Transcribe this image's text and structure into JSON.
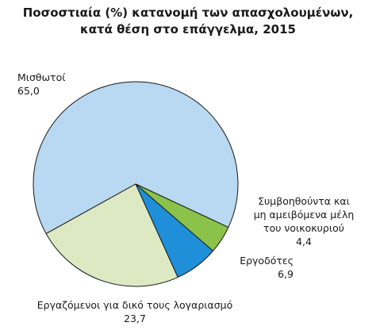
{
  "chart_data": {
    "type": "pie",
    "title": [
      "Ποσοστιαία (%) κατανομή των απασχολουμένων,",
      "κατά θέση στο επάγγελμα, 2015"
    ],
    "slices": [
      {
        "label": [
          "Μισθωτοί"
        ],
        "value": 65.0,
        "value_text": "65,0",
        "color": "#b9d8f1"
      },
      {
        "label": [
          "Συμβοηθούντα και",
          "μη αμειβόμενα μέλη",
          "του νοικοκυριού"
        ],
        "value": 4.4,
        "value_text": "4,4",
        "color": "#8bc34a"
      },
      {
        "label": [
          "Εργοδότες"
        ],
        "value": 6.9,
        "value_text": "6,9",
        "color": "#1e8fd8"
      },
      {
        "label": [
          "Εργαζόμενοι για δικό τους λογαριασμό"
        ],
        "value": 23.7,
        "value_text": "23,7",
        "color": "#dde9c3"
      }
    ],
    "stroke_color": "#1a1a1a"
  }
}
